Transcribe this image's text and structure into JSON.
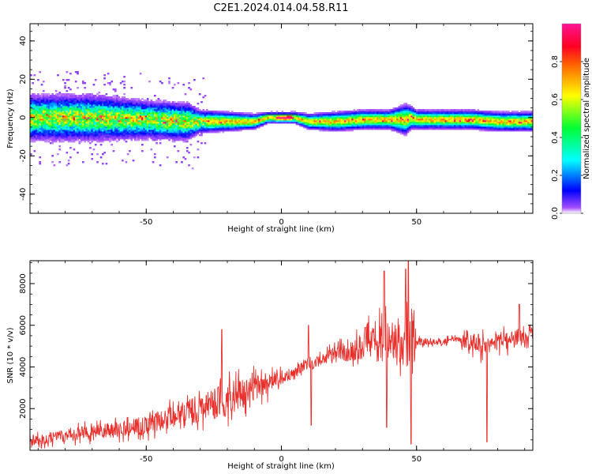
{
  "title": "C2E1.2024.014.04.58.R11",
  "chart_data": [
    {
      "type": "heatmap",
      "xlabel": "Height of straight line (km)",
      "ylabel": "Frequency (Hz)",
      "xlim": [
        -93,
        93
      ],
      "ylim": [
        -50,
        49
      ],
      "xticks": [
        -50,
        0,
        50
      ],
      "xtick_labels": [
        "-50",
        "0",
        "50"
      ],
      "yticks": [
        40,
        20,
        0,
        -20,
        -40
      ],
      "ytick_labels": [
        "40",
        "20",
        "0",
        "-20",
        "-40"
      ],
      "colorbar": {
        "label": "Normalized spectral amplitude",
        "range": [
          0,
          1
        ],
        "ticks": [
          0.0,
          0.2,
          0.4,
          0.6,
          0.8
        ],
        "tick_labels": [
          "0.0",
          "0.2",
          "0.4",
          "0.6",
          "0.8"
        ],
        "colormap": "gist_rainbow_r"
      },
      "ridge": {
        "description": "Dominant frequency band centred near 0 Hz",
        "x": [
          -93,
          -70,
          -50,
          -35,
          -30,
          -20,
          -10,
          -5,
          0,
          5,
          10,
          20,
          30,
          40,
          46,
          48,
          50,
          60,
          70,
          80,
          93
        ],
        "center_hz": [
          0,
          0,
          -1,
          -2,
          -2,
          -2,
          -2,
          0,
          0,
          0,
          -2,
          -2,
          -1,
          -1,
          -1,
          0,
          -1,
          -1,
          -1,
          -2,
          -2
        ],
        "halfwidth_hz": [
          6,
          6,
          5,
          5,
          3,
          2.5,
          2,
          1.5,
          1.5,
          1.5,
          2,
          2.5,
          2.5,
          2.5,
          4,
          3,
          2.5,
          2.5,
          2.5,
          2.5,
          2.5
        ]
      }
    },
    {
      "type": "line",
      "xlabel": "Height of straight line (km)",
      "ylabel": "SNR (10 * v/v)",
      "xlim": [
        -93,
        93
      ],
      "ylim": [
        0,
        9100
      ],
      "xticks": [
        -50,
        0,
        50
      ],
      "xtick_labels": [
        "-50",
        "0",
        "50"
      ],
      "yticks": [
        2000,
        4000,
        6000,
        8000
      ],
      "ytick_labels": [
        "2000",
        "4000",
        "6000",
        "8000"
      ],
      "color": "#e8302c",
      "series": [
        {
          "name": "SNR",
          "x": [
            -93,
            -90,
            -85,
            -80,
            -75,
            -70,
            -65,
            -60,
            -55,
            -50,
            -45,
            -40,
            -35,
            -30,
            -25,
            -22,
            -20,
            -15,
            -10,
            -5,
            0,
            3,
            5,
            8,
            10,
            12,
            15,
            20,
            25,
            30,
            32,
            35,
            38,
            40,
            42,
            45,
            47,
            48,
            50,
            55,
            60,
            65,
            70,
            75,
            78,
            80,
            85,
            88,
            90,
            93
          ],
          "values": [
            400,
            500,
            600,
            700,
            800,
            900,
            900,
            1000,
            1100,
            1200,
            1400,
            1600,
            1800,
            2000,
            2200,
            2600,
            2400,
            2700,
            3000,
            3200,
            3500,
            3600,
            3800,
            4000,
            4200,
            4100,
            4400,
            4600,
            4800,
            5000,
            5200,
            5000,
            5400,
            5100,
            5300,
            5100,
            5200,
            5000,
            5200,
            5200,
            5200,
            5300,
            5200,
            5000,
            5100,
            5200,
            5300,
            5400,
            5500,
            5500
          ],
          "noise_amplitude": [
            400,
            450,
            500,
            500,
            550,
            600,
            650,
            700,
            750,
            800,
            900,
            1000,
            1100,
            1200,
            1300,
            1800,
            1500,
            1300,
            1100,
            900,
            600,
            500,
            500,
            400,
            500,
            400,
            500,
            700,
            900,
            1100,
            1300,
            1500,
            2300,
            1400,
            1600,
            1800,
            3400,
            3800,
            300,
            250,
            250,
            300,
            900,
            900,
            500,
            700,
            800,
            900,
            700,
            600
          ],
          "spikes": [
            {
              "x": -22,
              "value": 5800
            },
            {
              "x": 10,
              "value": 6000
            },
            {
              "x": 11,
              "value": 1200
            },
            {
              "x": 31,
              "value": 5900
            },
            {
              "x": 38,
              "value": 8600
            },
            {
              "x": 39,
              "value": 1100
            },
            {
              "x": 46,
              "value": 8700
            },
            {
              "x": 47,
              "value": 9100
            },
            {
              "x": 48,
              "value": 300
            },
            {
              "x": 76,
              "value": 400
            },
            {
              "x": 88,
              "value": 7000
            }
          ]
        }
      ]
    }
  ]
}
